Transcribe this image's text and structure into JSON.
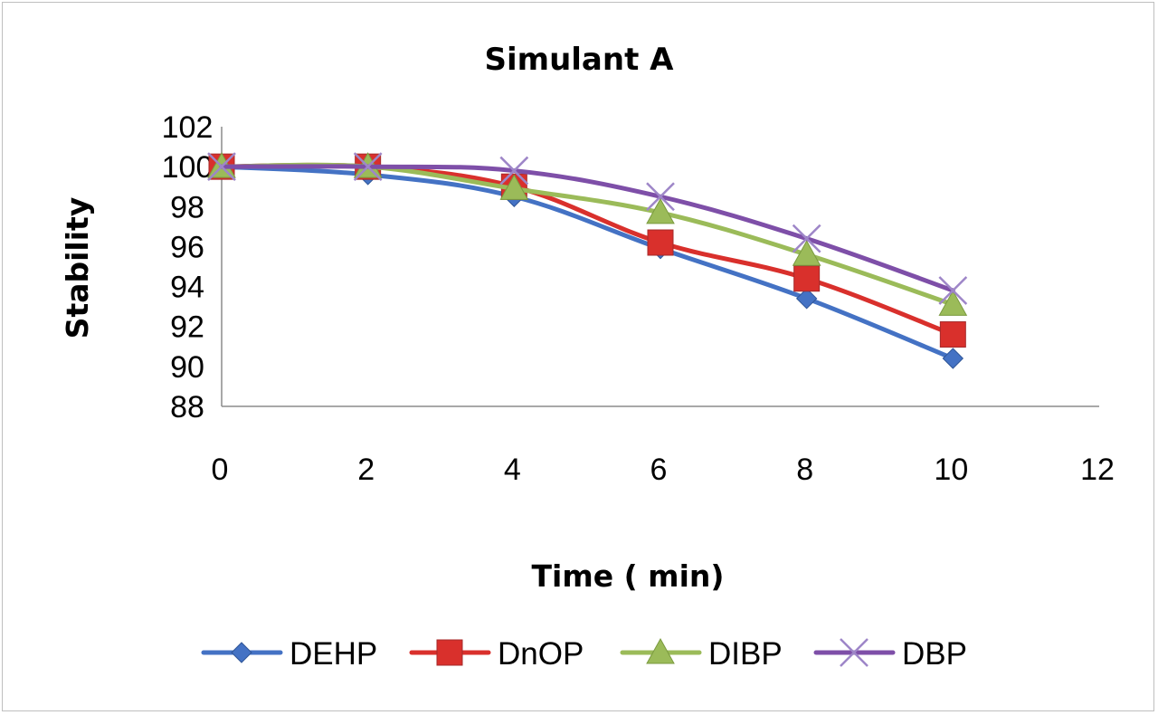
{
  "chart_data": {
    "type": "line",
    "title": "Simulant A",
    "xlabel": "Time ( min)",
    "ylabel": "Stability",
    "x": [
      0,
      2,
      4,
      6,
      8,
      10
    ],
    "xlim": [
      0,
      12
    ],
    "ylim": [
      88,
      102
    ],
    "xticks": [
      "0",
      "2",
      "4",
      "6",
      "8",
      "10",
      "12"
    ],
    "yticks": [
      "102",
      "100",
      "98",
      "96",
      "94",
      "92",
      "90",
      "88"
    ],
    "grid": false,
    "legend_position": "bottom",
    "series": [
      {
        "name": "DEHP",
        "values": [
          100,
          99.6,
          98.5,
          95.9,
          93.4,
          90.4
        ],
        "color": "#4472C4",
        "marker": "diamond"
      },
      {
        "name": "DnOP",
        "values": [
          100,
          100.0,
          99.0,
          96.2,
          94.4,
          91.6
        ],
        "color": "#D9302C",
        "marker": "square"
      },
      {
        "name": "DIBP",
        "values": [
          100,
          100.0,
          98.9,
          97.7,
          95.6,
          93.1
        ],
        "color": "#9BBB59",
        "marker": "triangle"
      },
      {
        "name": "DBP",
        "values": [
          100,
          100.0,
          99.8,
          98.5,
          96.4,
          93.8
        ],
        "color": "#7E4FA8",
        "marker": "x"
      }
    ]
  }
}
